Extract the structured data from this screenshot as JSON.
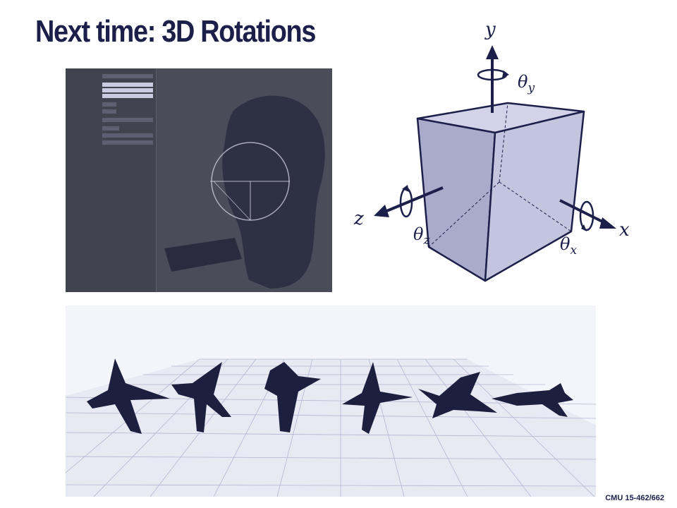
{
  "slide": {
    "title": "Next time: 3D Rotations",
    "footer": "CMU 15-462/662"
  },
  "cube_diagram": {
    "axes": {
      "x": "x",
      "y": "y",
      "z": "z"
    },
    "rotations": {
      "theta": "θ",
      "sub_x": "x",
      "sub_y": "y",
      "sub_z": "z"
    }
  },
  "colors": {
    "title": "#1c1f4a",
    "cube_face": "#b7b8d6",
    "ink": "#1c1f4a"
  },
  "icons": [
    "rotation-arrow-icon",
    "axis-arrow-icon"
  ]
}
